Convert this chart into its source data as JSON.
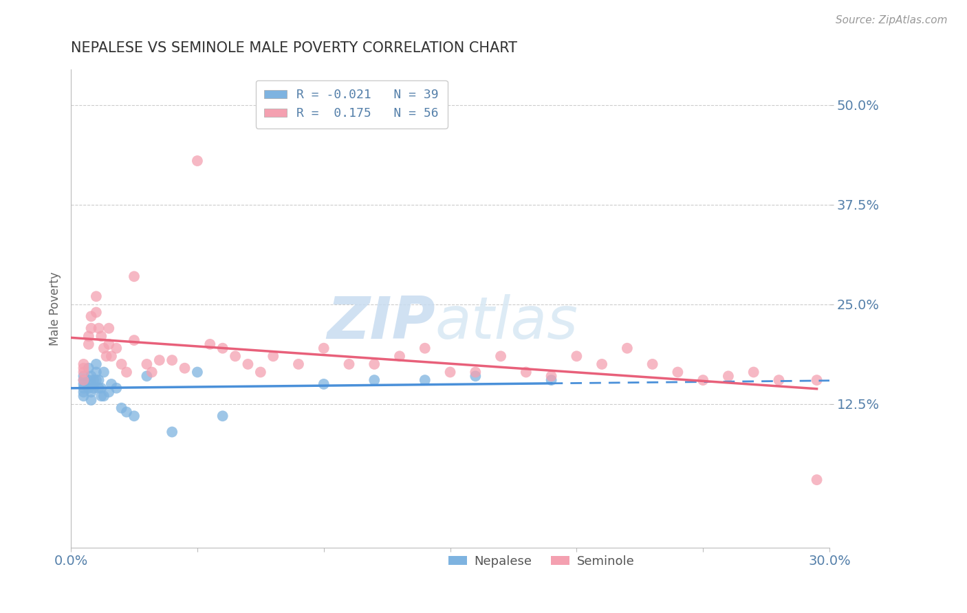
{
  "title": "NEPALESE VS SEMINOLE MALE POVERTY CORRELATION CHART",
  "source_text": "Source: ZipAtlas.com",
  "ylabel": "Male Poverty",
  "xlim": [
    0.0,
    0.3
  ],
  "ylim": [
    -0.055,
    0.545
  ],
  "yticks": [
    0.125,
    0.25,
    0.375,
    0.5
  ],
  "ytick_labels": [
    "12.5%",
    "25.0%",
    "37.5%",
    "50.0%"
  ],
  "xticks": [
    0.0,
    0.05,
    0.1,
    0.15,
    0.2,
    0.25,
    0.3
  ],
  "xtick_labels": [
    "0.0%",
    "",
    "",
    "",
    "",
    "",
    "30.0%"
  ],
  "nepalese_R": -0.021,
  "nepalese_N": 39,
  "seminole_R": 0.175,
  "seminole_N": 56,
  "nepalese_color": "#7EB3E0",
  "seminole_color": "#F4A0B0",
  "nepalese_line_color": "#4A90D9",
  "seminole_line_color": "#E8607A",
  "grid_color": "#CCCCCC",
  "title_color": "#333333",
  "axis_label_color": "#5580AA",
  "background_color": "#FFFFFF",
  "watermark_color": "#D0E4F0",
  "nepalese_x": [
    0.005,
    0.005,
    0.005,
    0.005,
    0.005,
    0.005,
    0.007,
    0.007,
    0.007,
    0.008,
    0.008,
    0.008,
    0.008,
    0.009,
    0.009,
    0.01,
    0.01,
    0.01,
    0.011,
    0.011,
    0.012,
    0.012,
    0.013,
    0.013,
    0.015,
    0.016,
    0.018,
    0.02,
    0.022,
    0.025,
    0.03,
    0.04,
    0.05,
    0.06,
    0.1,
    0.12,
    0.14,
    0.16,
    0.19
  ],
  "nepalese_y": [
    0.16,
    0.155,
    0.15,
    0.145,
    0.14,
    0.135,
    0.17,
    0.155,
    0.145,
    0.16,
    0.15,
    0.14,
    0.13,
    0.155,
    0.145,
    0.175,
    0.165,
    0.155,
    0.155,
    0.145,
    0.145,
    0.135,
    0.165,
    0.135,
    0.14,
    0.15,
    0.145,
    0.12,
    0.115,
    0.11,
    0.16,
    0.09,
    0.165,
    0.11,
    0.15,
    0.155,
    0.155,
    0.16,
    0.155
  ],
  "seminole_x": [
    0.005,
    0.005,
    0.005,
    0.005,
    0.007,
    0.007,
    0.008,
    0.008,
    0.01,
    0.01,
    0.011,
    0.012,
    0.013,
    0.014,
    0.015,
    0.015,
    0.016,
    0.018,
    0.02,
    0.022,
    0.025,
    0.025,
    0.03,
    0.032,
    0.035,
    0.04,
    0.045,
    0.05,
    0.055,
    0.06,
    0.065,
    0.07,
    0.075,
    0.08,
    0.09,
    0.1,
    0.11,
    0.12,
    0.13,
    0.14,
    0.15,
    0.16,
    0.17,
    0.18,
    0.19,
    0.2,
    0.21,
    0.22,
    0.23,
    0.24,
    0.25,
    0.26,
    0.27,
    0.28,
    0.295,
    0.295
  ],
  "seminole_y": [
    0.175,
    0.17,
    0.165,
    0.155,
    0.21,
    0.2,
    0.235,
    0.22,
    0.26,
    0.24,
    0.22,
    0.21,
    0.195,
    0.185,
    0.22,
    0.2,
    0.185,
    0.195,
    0.175,
    0.165,
    0.285,
    0.205,
    0.175,
    0.165,
    0.18,
    0.18,
    0.17,
    0.43,
    0.2,
    0.195,
    0.185,
    0.175,
    0.165,
    0.185,
    0.175,
    0.195,
    0.175,
    0.175,
    0.185,
    0.195,
    0.165,
    0.165,
    0.185,
    0.165,
    0.16,
    0.185,
    0.175,
    0.195,
    0.175,
    0.165,
    0.155,
    0.16,
    0.165,
    0.155,
    0.03,
    0.155
  ]
}
